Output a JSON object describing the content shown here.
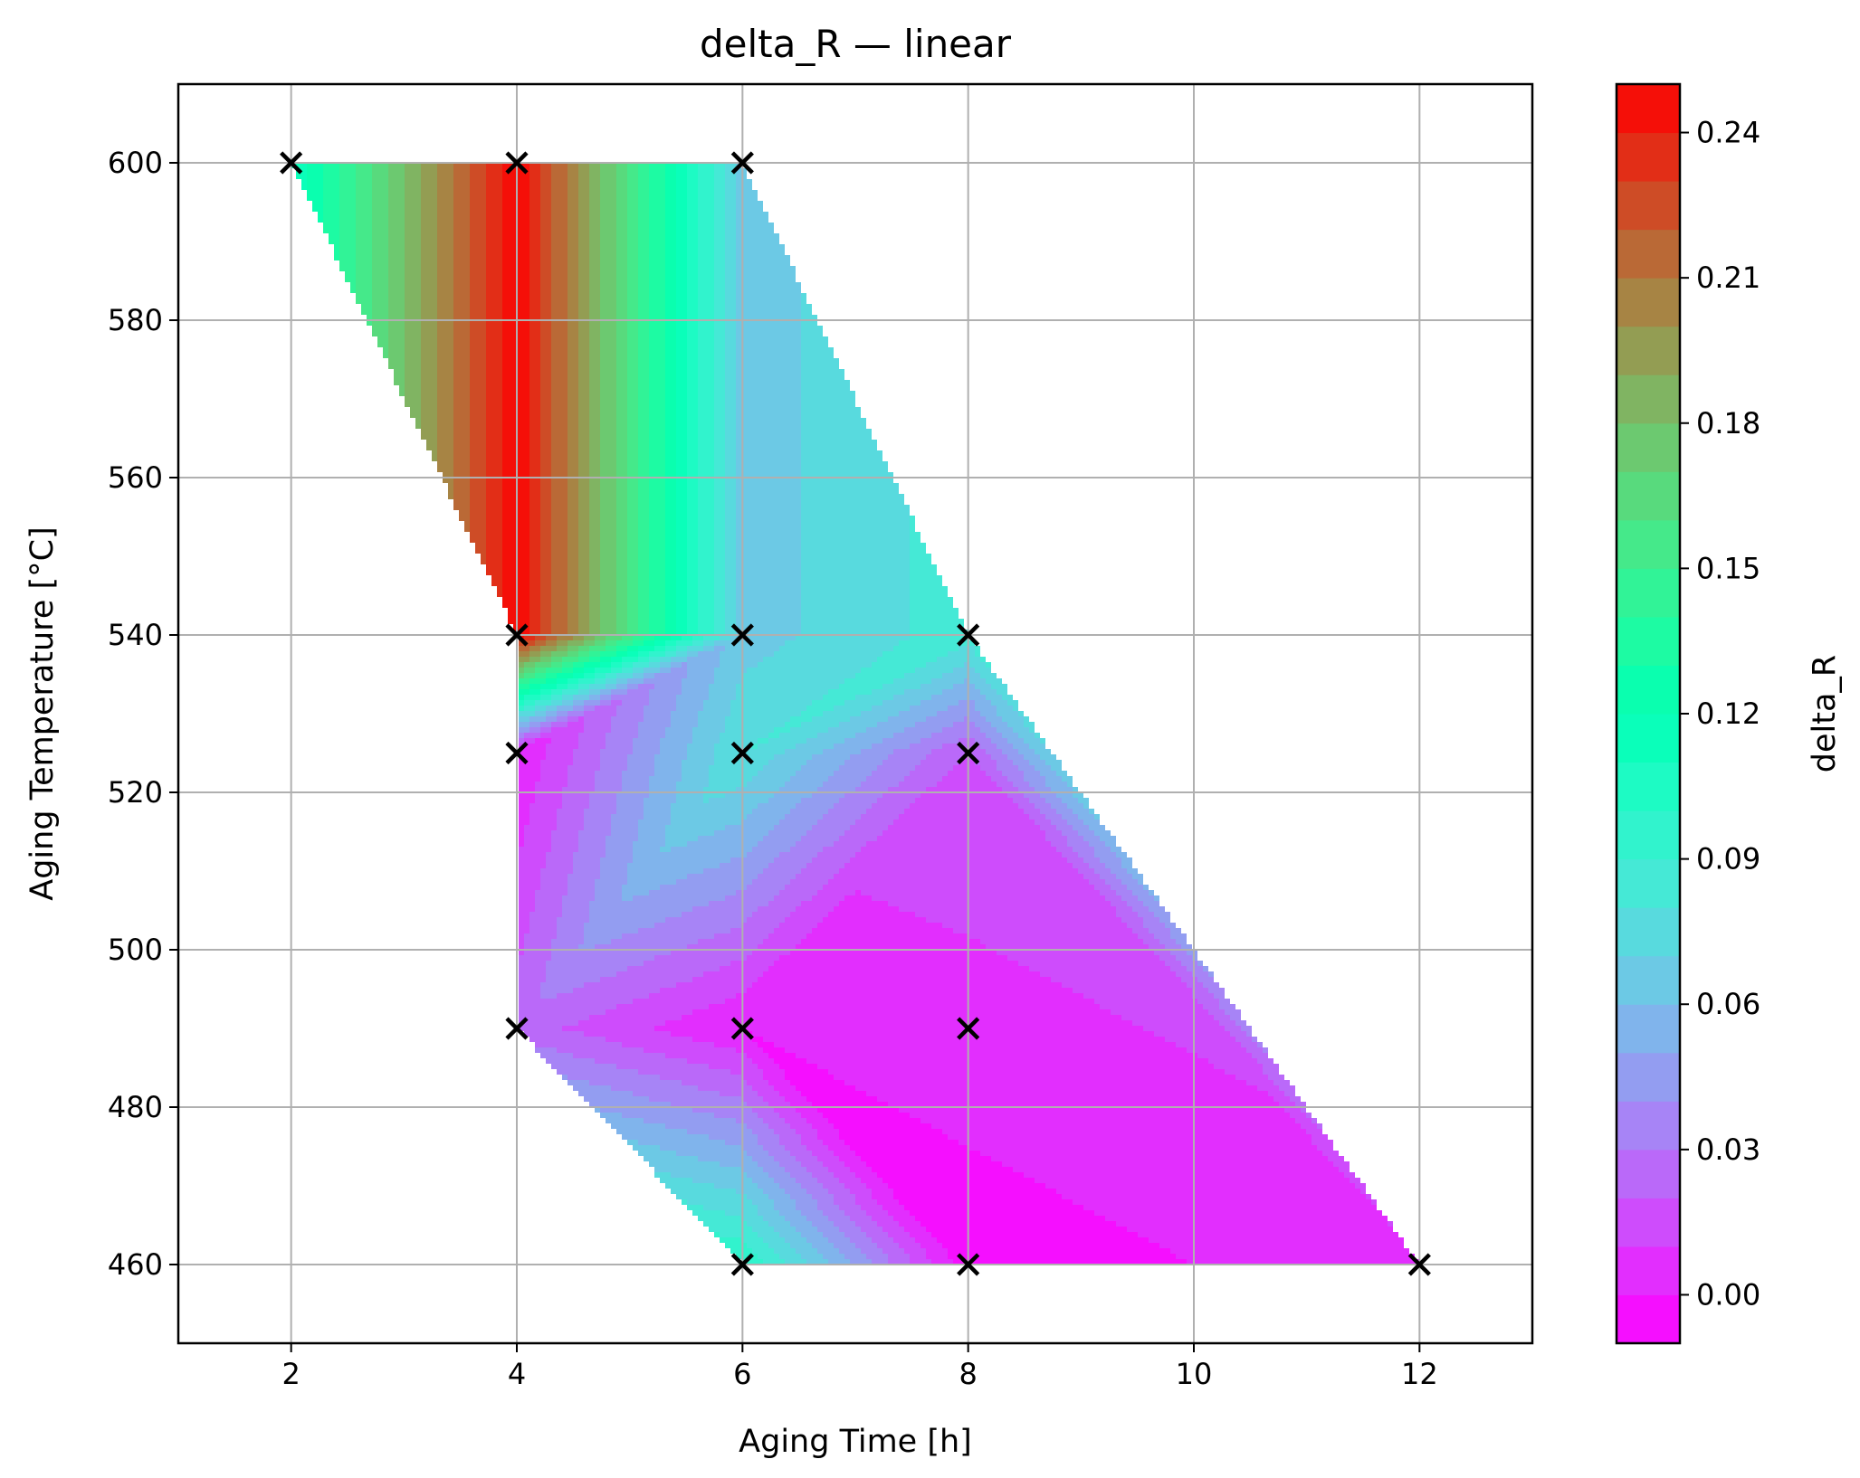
{
  "chart_data": {
    "type": "heatmap",
    "plot_style": "filled-contour",
    "title": "delta_R — linear",
    "xlabel": "Aging Time [h]",
    "ylabel": "Aging Temperature [°C]",
    "xlim": [
      1,
      13
    ],
    "ylim": [
      450,
      610
    ],
    "xticks": [
      2,
      4,
      6,
      8,
      10,
      12
    ],
    "yticks": [
      460,
      480,
      500,
      520,
      540,
      560,
      580,
      600
    ],
    "grid": true,
    "colormap": "rainbow",
    "colorbar": {
      "label": "delta_R",
      "range": [
        -0.01,
        0.25
      ],
      "ticks": [
        0.0,
        0.03,
        0.06,
        0.09,
        0.12,
        0.15,
        0.18,
        0.21,
        0.24
      ],
      "tick_labels": [
        "0.00",
        "0.03",
        "0.06",
        "0.09",
        "0.12",
        "0.15",
        "0.18",
        "0.21",
        "0.24"
      ]
    },
    "points": [
      {
        "x": 2,
        "y": 600,
        "value": 0.11
      },
      {
        "x": 4,
        "y": 600,
        "value": 0.25
      },
      {
        "x": 6,
        "y": 600,
        "value": 0.065
      },
      {
        "x": 4,
        "y": 540,
        "value": 0.25
      },
      {
        "x": 6,
        "y": 540,
        "value": 0.065
      },
      {
        "x": 8,
        "y": 540,
        "value": 0.085
      },
      {
        "x": 4,
        "y": 525,
        "value": 0.0
      },
      {
        "x": 6,
        "y": 525,
        "value": 0.08
      },
      {
        "x": 8,
        "y": 525,
        "value": 0.02
      },
      {
        "x": 4,
        "y": 490,
        "value": 0.025
      },
      {
        "x": 6,
        "y": 490,
        "value": 0.0
      },
      {
        "x": 8,
        "y": 490,
        "value": 0.005
      },
      {
        "x": 6,
        "y": 460,
        "value": 0.1
      },
      {
        "x": 8,
        "y": 460,
        "value": -0.005
      },
      {
        "x": 12,
        "y": 460,
        "value": 0.005
      }
    ],
    "marker": "x"
  }
}
